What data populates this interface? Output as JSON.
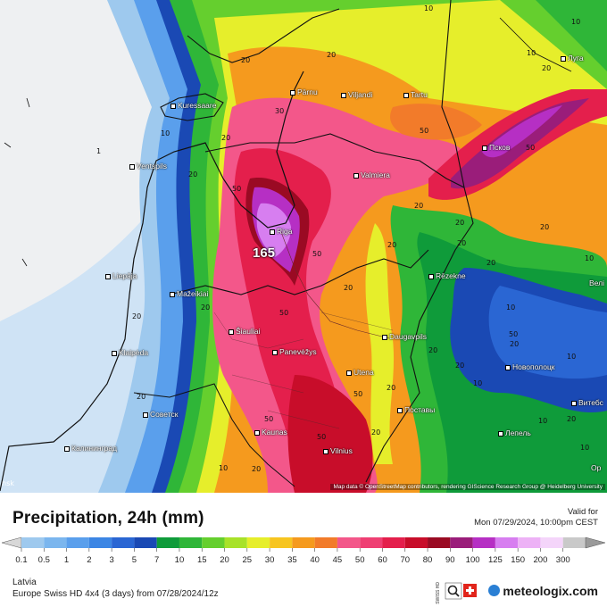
{
  "map": {
    "max_value_label": "165",
    "attribution": "Map data © OpenStreetMap contributors, rendering GIScience Research Group @ Heidelberg University",
    "edge_label": "nsk",
    "cities": [
      {
        "name": "Луга"
      },
      {
        "name": "Pärnu"
      },
      {
        "name": "Viljandi"
      },
      {
        "name": "Tartu"
      },
      {
        "name": "Kuressaare"
      },
      {
        "name": "Псков"
      },
      {
        "name": "Valmiera"
      },
      {
        "name": "Ventspils"
      },
      {
        "name": "Riga"
      },
      {
        "name": "Liepāja"
      },
      {
        "name": "Rēzekne"
      },
      {
        "name": "Велі"
      },
      {
        "name": "Mažeikiai"
      },
      {
        "name": "Šiauliai"
      },
      {
        "name": "Daugavpils"
      },
      {
        "name": "Klaipėda"
      },
      {
        "name": "Panevėžys"
      },
      {
        "name": "Новополоцк"
      },
      {
        "name": "Utena"
      },
      {
        "name": "Витебс"
      },
      {
        "name": "Советск"
      },
      {
        "name": "Поставы"
      },
      {
        "name": "Kaunas"
      },
      {
        "name": "Лепель"
      },
      {
        "name": "Калининград"
      },
      {
        "name": "Vilnius"
      },
      {
        "name": "Ор"
      }
    ],
    "contour_labels": [
      "10",
      "20",
      "30",
      "50",
      "20",
      "50",
      "20",
      "20",
      "20",
      "20",
      "10",
      "20",
      "10",
      "50",
      "20",
      "20",
      "20",
      "50",
      "20",
      "10",
      "20",
      "20",
      "10",
      "50",
      "20",
      "10",
      "20",
      "50",
      "20",
      "20",
      "10",
      "50",
      "10",
      "20",
      "20",
      "10",
      "20",
      "50",
      "50",
      "20",
      "20",
      "10",
      "10",
      "1"
    ]
  },
  "footer": {
    "title": "Precipitation, 24h (mm)",
    "valid_label": "Valid for",
    "valid_time": "Mon 07/29/2024, 10:00pm CEST",
    "region": "Latvia",
    "model_line": "Europe Swiss HD 4x4  (3 days)  from  07/28/2024/12z",
    "brand": "meteologix.com",
    "badge_text": "SWISS HD"
  },
  "scale": {
    "labels": [
      "0.1",
      "0.5",
      "1",
      "2",
      "3",
      "5",
      "7",
      "10",
      "15",
      "20",
      "25",
      "30",
      "35",
      "40",
      "45",
      "50",
      "60",
      "70",
      "80",
      "90",
      "100",
      "125",
      "150",
      "200",
      "300"
    ],
    "colors": [
      "#9ec9ee",
      "#7bb6ee",
      "#5a9fec",
      "#3c86e4",
      "#2a66d3",
      "#1a49b4",
      "#0f9b3a",
      "#2fb638",
      "#65cf2e",
      "#a8e229",
      "#e6ee2b",
      "#f7c520",
      "#f59a1e",
      "#f27b2a",
      "#f3578a",
      "#ef3f73",
      "#e41f4c",
      "#c80d2a",
      "#9a0a23",
      "#9a1d7a",
      "#b62fc4",
      "#d77ef0",
      "#edb2f6",
      "#f4d5fa",
      "#c9c9c9"
    ],
    "left_arrow_color": "#d8d8d8",
    "right_arrow_color": "#9a9a9a"
  }
}
